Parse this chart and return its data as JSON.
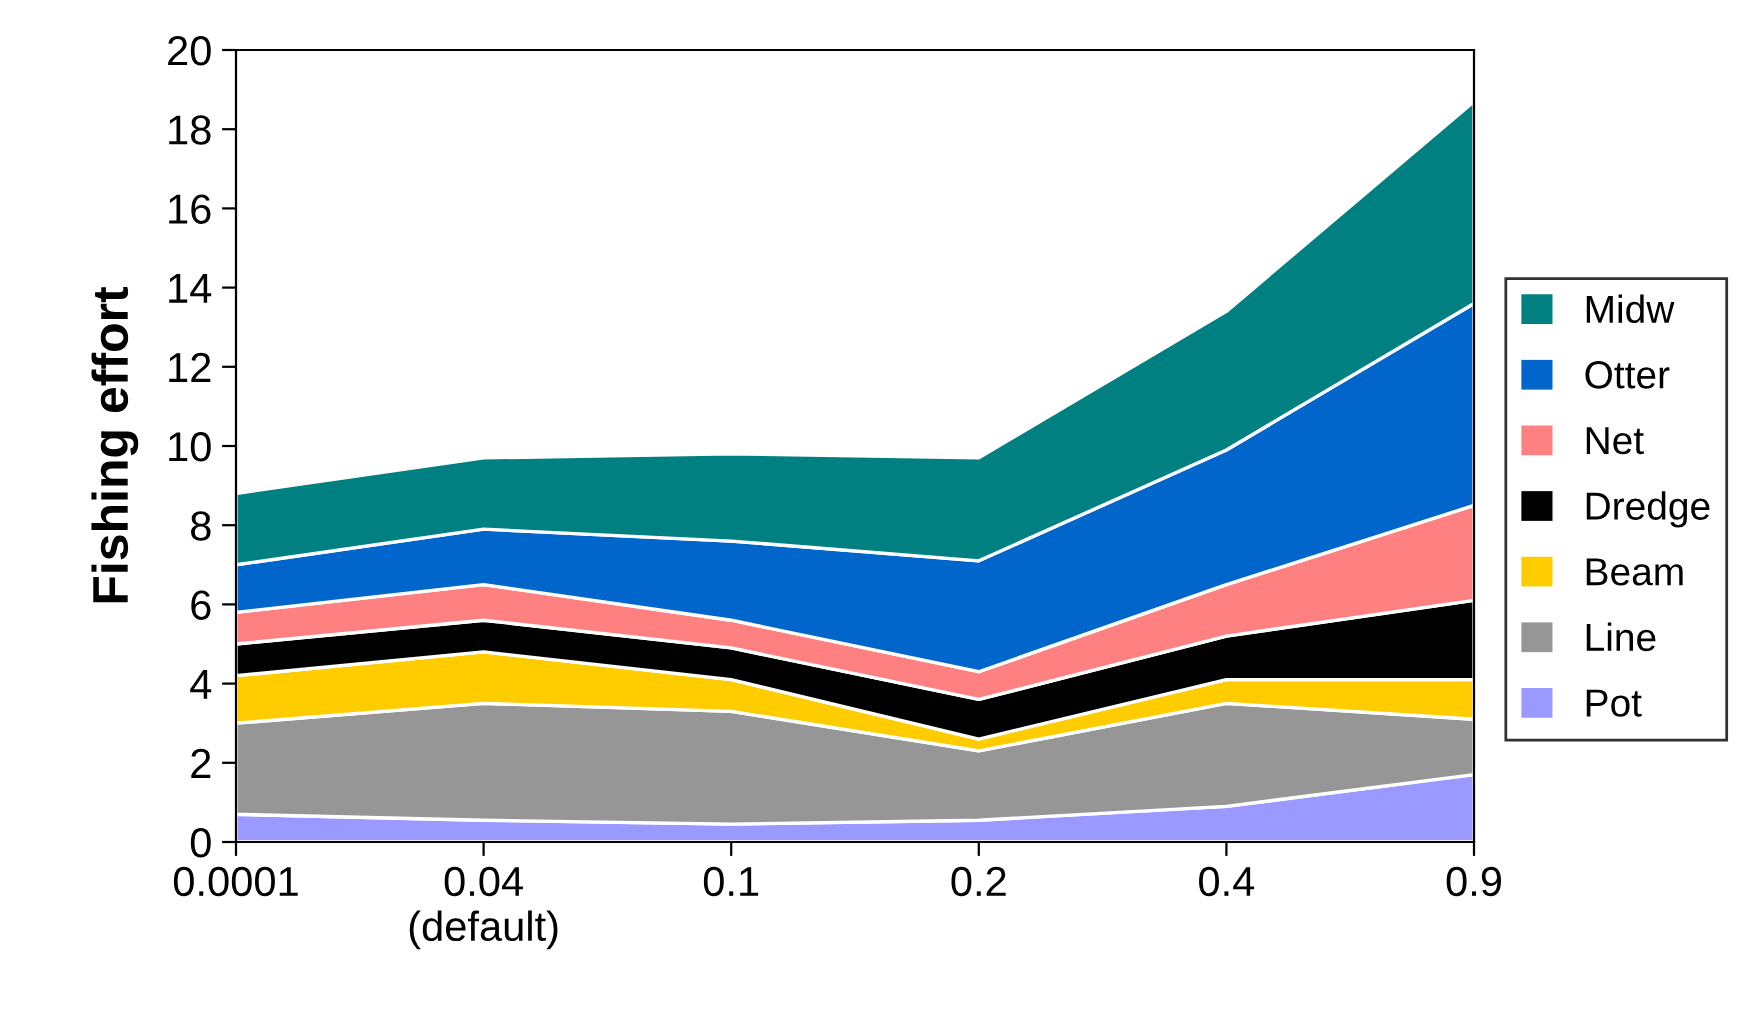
{
  "chart_data": {
    "type": "area",
    "stacked": true,
    "ylabel": "Fishing effort",
    "categories": [
      "0.0001",
      "0.04\n(default)",
      "0.1",
      "0.2",
      "0.4",
      "0.9"
    ],
    "ylim": [
      0,
      20
    ],
    "yticks": [
      0,
      2,
      4,
      6,
      8,
      10,
      12,
      14,
      16,
      18,
      20
    ],
    "grid": false,
    "legend": "right",
    "series": [
      {
        "name": "Pot",
        "color": "#9999ff",
        "values": [
          0.7,
          0.55,
          0.45,
          0.55,
          0.9,
          1.7
        ]
      },
      {
        "name": "Line",
        "color": "#969696",
        "values": [
          2.3,
          2.95,
          2.85,
          1.75,
          2.6,
          1.4
        ]
      },
      {
        "name": "Beam",
        "color": "#ffcc00",
        "values": [
          1.2,
          1.3,
          0.8,
          0.3,
          0.6,
          1.0
        ]
      },
      {
        "name": "Dredge",
        "color": "#000000",
        "values": [
          0.8,
          0.8,
          0.8,
          1.0,
          1.1,
          2.0
        ]
      },
      {
        "name": "Net",
        "color": "#ff8080",
        "values": [
          0.8,
          0.9,
          0.7,
          0.7,
          1.3,
          2.4
        ]
      },
      {
        "name": "Otter",
        "color": "#0066cc",
        "values": [
          1.2,
          1.4,
          2.0,
          2.8,
          3.4,
          5.1
        ]
      },
      {
        "name": "Midw",
        "color": "#008080",
        "values": [
          1.8,
          1.8,
          2.2,
          2.6,
          3.5,
          5.1
        ]
      }
    ]
  }
}
